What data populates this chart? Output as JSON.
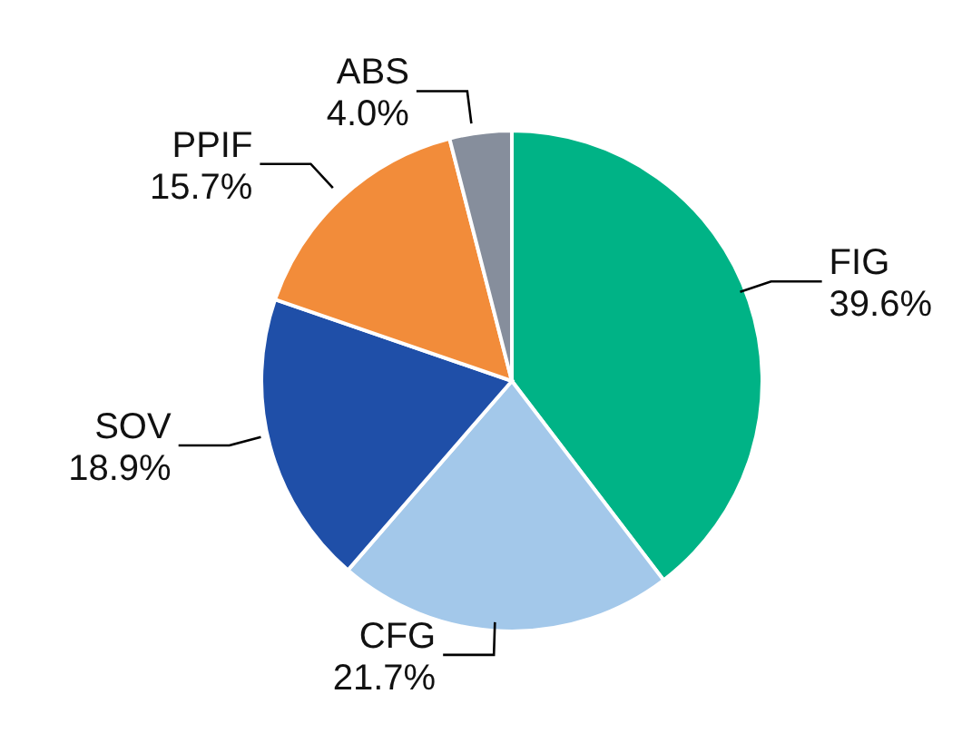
{
  "chart_data": {
    "type": "pie",
    "categories": [
      "FIG",
      "CFG",
      "SOV",
      "PPIF",
      "ABS"
    ],
    "values": [
      39.6,
      21.7,
      18.9,
      15.7,
      4.0
    ],
    "value_labels": [
      "39.6%",
      "21.7%",
      "18.9%",
      "15.7%",
      "4.0%"
    ],
    "colors": [
      "#00b386",
      "#a3c8ea",
      "#1f4fa8",
      "#f28c3a",
      "#868e9c"
    ]
  }
}
